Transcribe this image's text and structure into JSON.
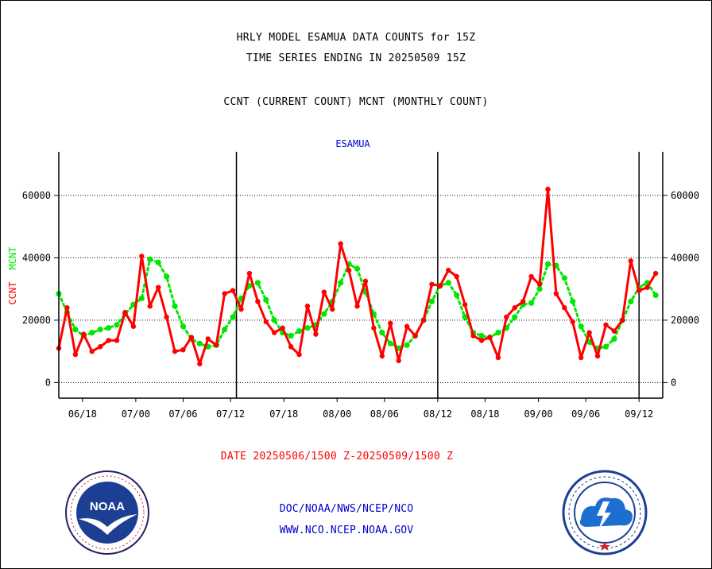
{
  "header": {
    "title_line1": "HRLY MODEL ESAMUA DATA COUNTS for 15Z",
    "title_line2": "TIME SERIES ENDING IN 20250509 15Z",
    "title_line3": "CCNT (CURRENT COUNT) MCNT (MONTHLY COUNT)"
  },
  "date_range": "DATE 20250506/1500 Z-20250509/1500 Z",
  "footer": {
    "line1": "DOC/NOAA/NWS/NCEP/NCO",
    "line2": "WWW.NCO.NCEP.NOAA.GOV"
  },
  "logos": {
    "noaa_text": "NOAA",
    "noaa_ring": "NATIONAL OCEANIC AND ATMOSPHERIC ADMINISTRATION · U.S. DEPARTMENT OF COMMERCE",
    "nws_ring": "NATIONAL WEATHER SERVICE"
  },
  "colors": {
    "ccnt": "#ff0000",
    "mcnt": "#00e600",
    "frame_title": "#0000cc",
    "grid": "#000000"
  },
  "chart_data": {
    "type": "line",
    "title": "ESAMUA",
    "ylabel_left": "CCNT",
    "ylabel_left2": "MCNT",
    "ylim": [
      -5000,
      74000
    ],
    "yticks": [
      0,
      20000,
      40000,
      60000
    ],
    "ytick_labels": [
      "0",
      "20000",
      "40000",
      "60000"
    ],
    "grid": "horizontal dotted",
    "x_count": 103,
    "xticks": [
      {
        "i": 4,
        "label": "06/18"
      },
      {
        "i": 13,
        "label": "07/00"
      },
      {
        "i": 21,
        "label": "07/06"
      },
      {
        "i": 29,
        "label": "07/12"
      },
      {
        "i": 38,
        "label": "07/18"
      },
      {
        "i": 47,
        "label": "08/00"
      },
      {
        "i": 55,
        "label": "08/06"
      },
      {
        "i": 64,
        "label": "08/12"
      },
      {
        "i": 72,
        "label": "08/18"
      },
      {
        "i": 81,
        "label": "09/00"
      },
      {
        "i": 89,
        "label": "09/06"
      },
      {
        "i": 98,
        "label": "09/12"
      }
    ],
    "day_dividers": [
      30,
      64,
      98
    ],
    "series": [
      {
        "name": "CCNT",
        "color": "#ff0000",
        "values": [
          11000,
          24000,
          9000,
          15500,
          10000,
          11500,
          13500,
          13500,
          22500,
          18000,
          40500,
          24500,
          30500,
          21000,
          10000,
          10500,
          14500,
          6000,
          14000,
          12000,
          28500,
          29500,
          23500,
          35000,
          26000,
          19500,
          16000,
          17500,
          11500,
          9000,
          24500,
          15500,
          29000,
          23500,
          44500,
          36000,
          24500,
          32500,
          17500,
          8500,
          19000,
          7000,
          18000,
          15000,
          20000,
          31500,
          31000,
          36000,
          34000,
          25000,
          15000,
          13500,
          14500,
          8000,
          21000,
          24000,
          26000,
          34000,
          31500,
          62000,
          28500,
          24000,
          19500,
          8000,
          16000,
          8500,
          18500,
          16500,
          20000,
          39000,
          29500,
          30500,
          35000
        ]
      },
      {
        "name": "MCNT",
        "color": "#00e600",
        "values": [
          28500,
          22500,
          17000,
          15000,
          16000,
          17000,
          17500,
          18500,
          22000,
          25000,
          27000,
          39500,
          38500,
          34000,
          24500,
          18000,
          14000,
          12500,
          11500,
          12000,
          17000,
          21000,
          27000,
          31000,
          32000,
          26500,
          20000,
          16000,
          15000,
          16500,
          17500,
          18500,
          22000,
          26000,
          32000,
          38000,
          36500,
          29000,
          22000,
          16000,
          12500,
          11000,
          12000,
          15000,
          20000,
          26000,
          31000,
          32000,
          28000,
          21000,
          16000,
          15000,
          14500,
          16000,
          17500,
          21000,
          25000,
          25500,
          30000,
          38000,
          37500,
          33500,
          26000,
          18000,
          13000,
          11000,
          11500,
          14000,
          20000,
          26000,
          30500,
          32000,
          28000
        ]
      }
    ],
    "ccnt_x_index_step": 1.4
  }
}
